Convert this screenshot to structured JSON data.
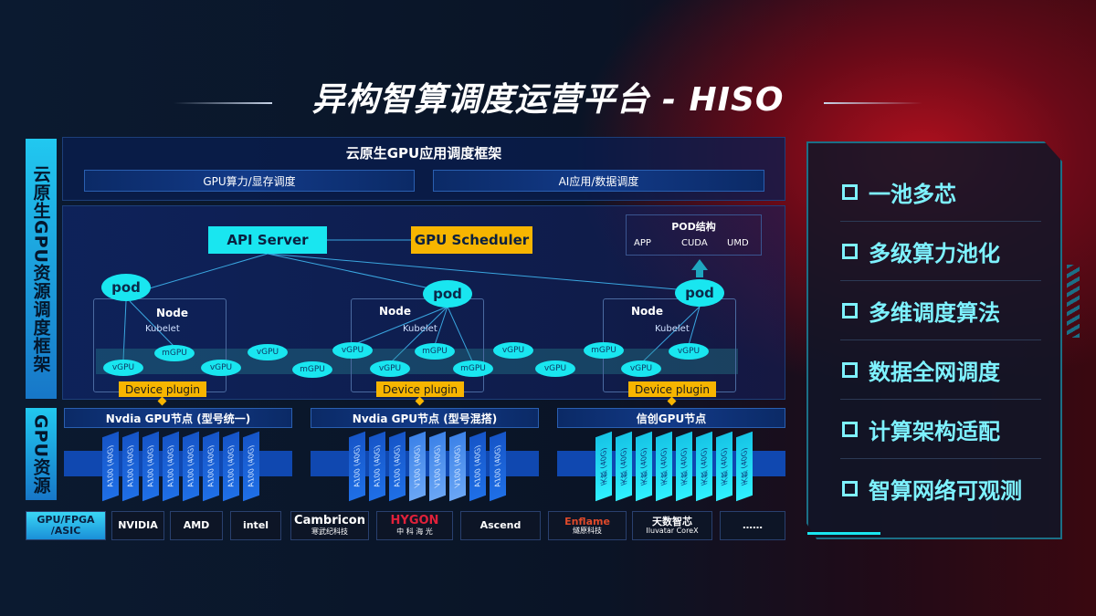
{
  "title": "异构智算调度运营平台 - HISO",
  "left_labels": {
    "framework": "云原生GPU资源调度框架",
    "resources": "GPU资源",
    "chips": "GPU/FPGA /ASIC"
  },
  "header": {
    "title": "云原生GPU应用调度框架",
    "bars": [
      "GPU算力/显存调度",
      "AI应用/数据调度"
    ]
  },
  "diagram": {
    "api_server": "API Server",
    "gpu_scheduler": "GPU Scheduler",
    "pod_structure": {
      "title": "POD结构",
      "items": [
        "APP",
        "CUDA",
        "UMD"
      ]
    },
    "pod": "pod",
    "node": "Node",
    "kubelet": "Kubelet",
    "device_plugin": "Device plugin",
    "gpus": [
      "vGPU",
      "mGPU",
      "vGPU",
      "vGPU",
      "mGPU",
      "vGPU",
      "vGPU",
      "mGPU",
      "mGPU",
      "vGPU",
      "vGPU",
      "mGPU",
      "vGPU",
      "vGPU"
    ]
  },
  "gpu_nodes": [
    {
      "title": "Nvdia GPU节点 (型号统一)",
      "cards": [
        "A100 (40G)",
        "A100 (40G)",
        "A100 (40G)",
        "A100 (40G)",
        "A100 (40G)",
        "A100 (40G)",
        "A100 (40G)",
        "A100 (40G)"
      ]
    },
    {
      "title": "Nvdia GPU节点 (型号混搭)",
      "cards": [
        "A100 (40G)",
        "A100 (40G)",
        "A100 (40G)",
        "V100 (40G)",
        "V100 (40G)",
        "V100 (40G)",
        "A100 (40G)",
        "A100 (40G)"
      ]
    },
    {
      "title": "信创GPU节点",
      "cards": [
        "天数 (40G)",
        "天数 (40G)",
        "天数 (40G)",
        "天数 (40G)",
        "天数 (40G)",
        "天数 (40G)",
        "天数 (40G)",
        "天数 (40G)"
      ]
    }
  ],
  "vendors": [
    {
      "name": "NVIDIA",
      "sub": ""
    },
    {
      "name": "AMD",
      "sub": ""
    },
    {
      "name": "intel",
      "sub": ""
    },
    {
      "name": "Cambricon",
      "sub": "寒武纪科技"
    },
    {
      "name": "HYGON",
      "sub": "中 科 海 光"
    },
    {
      "name": "Ascend",
      "sub": ""
    },
    {
      "name": "Enflame",
      "sub": "燧原科技"
    },
    {
      "name": "天数智芯",
      "sub": "Iluvatar CoreX"
    },
    {
      "name": "……",
      "sub": ""
    }
  ],
  "features": [
    "一池多芯",
    "多级算力池化",
    "多维调度算法",
    "数据全网调度",
    "计算架构适配",
    "智算网络可观测"
  ],
  "colors": {
    "cyan": "#19e6f0",
    "yellow": "#f7b500",
    "feature_text": "#7ef2ff"
  }
}
